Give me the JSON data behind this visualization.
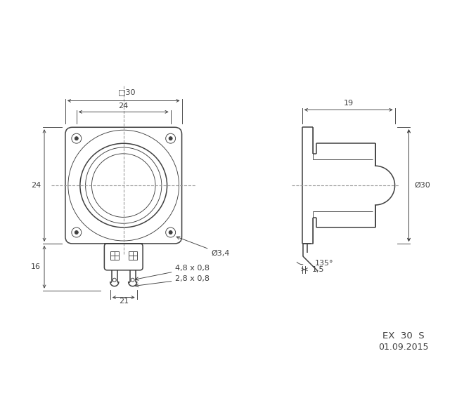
{
  "bg_color": "#ffffff",
  "line_color": "#404040",
  "dim_color": "#404040",
  "dash_color": "#999999",
  "label_EX": "EX  30  S",
  "label_date": "01.09.2015",
  "annotations": {
    "sq30": "□30",
    "dim24_top": "24",
    "dim24_left": "24",
    "dim16": "16",
    "dim21": "21",
    "dim19": "19",
    "dimD30": "Ø30",
    "dimD34": "Ø3,4",
    "dim48": "4,8 x 0,8",
    "dim28": "2,8 x 0,8",
    "dim135": "135°",
    "dim15": "1,5"
  },
  "figsize": [
    6.5,
    5.74
  ],
  "dpi": 100
}
